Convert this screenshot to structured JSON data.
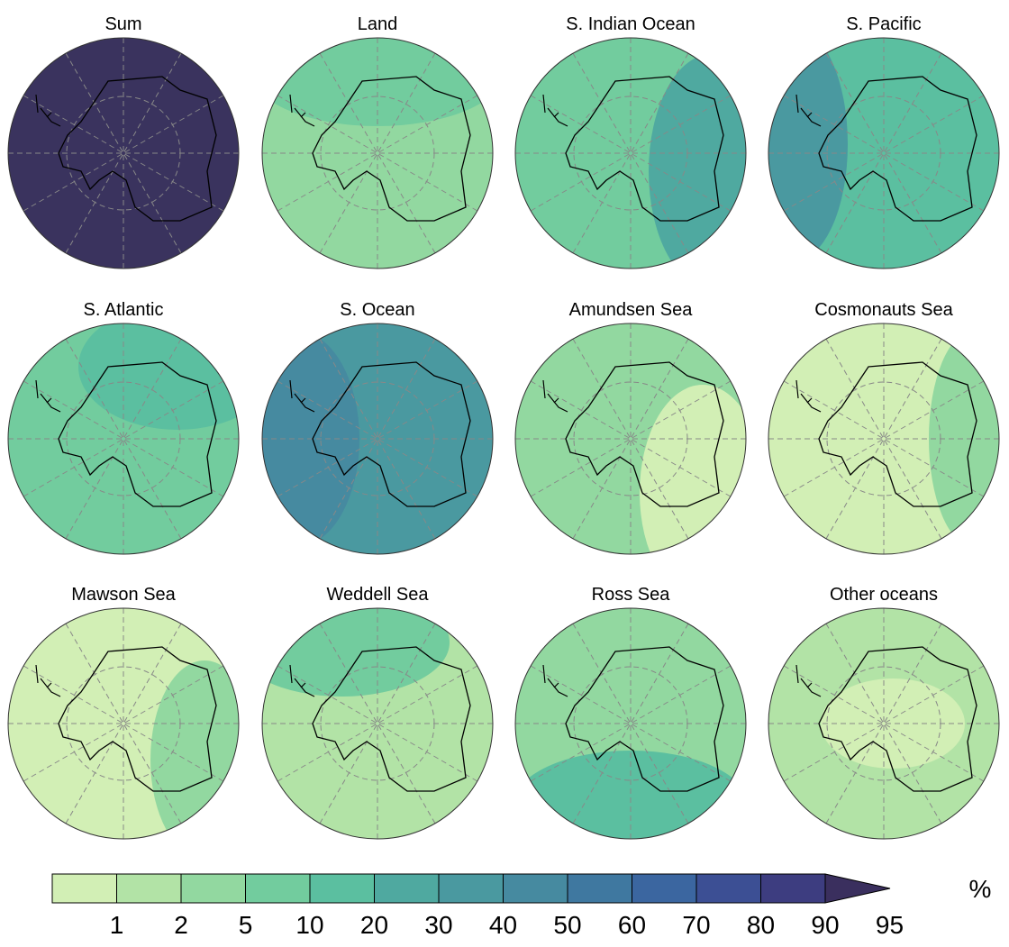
{
  "panels": [
    {
      "title": "Sum",
      "color": "#3a335e",
      "accent": "#3a335e"
    },
    {
      "title": "Land",
      "color": "#92d8a0",
      "accent": "#72cc9e"
    },
    {
      "title": "S. Indian Ocean",
      "color": "#72cc9e",
      "accent": "#4fa9a0"
    },
    {
      "title": "S. Pacific",
      "color": "#5bbfa0",
      "accent": "#4a99a0"
    },
    {
      "title": "S. Atlantic",
      "color": "#72cc9e",
      "accent": "#5bbfa0"
    },
    {
      "title": "S. Ocean",
      "color": "#4a99a0",
      "accent": "#468aa0"
    },
    {
      "title": "Amundsen Sea",
      "color": "#92d8a0",
      "accent": "#d2efb5"
    },
    {
      "title": "Cosmonauts Sea",
      "color": "#d2efb5",
      "accent": "#92d8a0"
    },
    {
      "title": "Mawson Sea",
      "color": "#d2efb5",
      "accent": "#92d8a0"
    },
    {
      "title": "Weddell Sea",
      "color": "#b2e3a6",
      "accent": "#72cc9e"
    },
    {
      "title": "Ross Sea",
      "color": "#92d8a0",
      "accent": "#5bbfa0"
    },
    {
      "title": "Other oceans",
      "color": "#b2e3a6",
      "accent": "#d2efb5"
    }
  ],
  "colorbar": {
    "ticks": [
      1,
      2,
      5,
      10,
      20,
      30,
      40,
      50,
      60,
      70,
      80,
      90,
      95
    ],
    "colors": [
      "#d2efb5",
      "#b2e3a6",
      "#92d8a0",
      "#72cc9e",
      "#5bbfa0",
      "#4fa9a0",
      "#4a99a0",
      "#468aa0",
      "#3f78a0",
      "#3b66a0",
      "#3c4f94",
      "#3d3d80",
      "#3a2f5e"
    ],
    "unit": "%"
  }
}
